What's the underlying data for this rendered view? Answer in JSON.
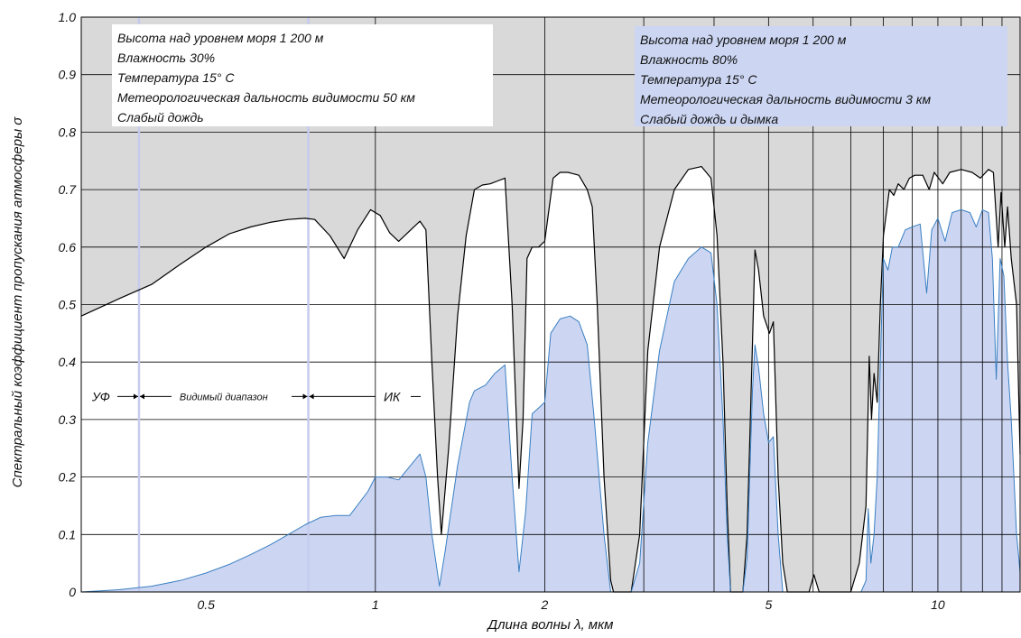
{
  "chart_data": {
    "type": "area",
    "xscale": "log",
    "xlim": [
      0.3,
      14
    ],
    "ylim": [
      0,
      1.0
    ],
    "xlabel": "Длина волны λ, мкм",
    "ylabel": "Спектральный коэффициент пропускания атмосферы σ",
    "grid": true,
    "background_color": "#d9d9d9",
    "y_ticks": [
      {
        "v": 0,
        "label": "0"
      },
      {
        "v": 0.1,
        "label": "0.1"
      },
      {
        "v": 0.2,
        "label": "0.2"
      },
      {
        "v": 0.3,
        "label": "0.3"
      },
      {
        "v": 0.4,
        "label": "0.4"
      },
      {
        "v": 0.5,
        "label": "0.5"
      },
      {
        "v": 0.6,
        "label": "0.6"
      },
      {
        "v": 0.7,
        "label": "0.7"
      },
      {
        "v": 0.8,
        "label": "0.8"
      },
      {
        "v": 0.9,
        "label": "0.9"
      },
      {
        "v": 1.0,
        "label": "1.0"
      }
    ],
    "x_ticks": [
      {
        "v": 0.5,
        "label": "0.5"
      },
      {
        "v": 1,
        "label": "1"
      },
      {
        "v": 2,
        "label": "2"
      },
      {
        "v": 5,
        "label": "5"
      },
      {
        "v": 10,
        "label": "10"
      }
    ],
    "x_gridlines": [
      1,
      2,
      3,
      4,
      5,
      6,
      7,
      8,
      9,
      10,
      11,
      12,
      13
    ],
    "band_lines": [
      0.38,
      0.76
    ],
    "band_labels": {
      "uv": "УФ",
      "visible": "Видимый диапазон",
      "ir": "ИК"
    },
    "series": [
      {
        "name": "clear",
        "color": "#000000",
        "fill": "#ffffff",
        "points": [
          [
            0.3,
            0.48
          ],
          [
            0.35,
            0.51
          ],
          [
            0.4,
            0.535
          ],
          [
            0.45,
            0.57
          ],
          [
            0.5,
            0.6
          ],
          [
            0.55,
            0.623
          ],
          [
            0.6,
            0.635
          ],
          [
            0.65,
            0.643
          ],
          [
            0.7,
            0.648
          ],
          [
            0.75,
            0.65
          ],
          [
            0.78,
            0.648
          ],
          [
            0.83,
            0.62
          ],
          [
            0.88,
            0.58
          ],
          [
            0.93,
            0.63
          ],
          [
            0.98,
            0.665
          ],
          [
            1.02,
            0.655
          ],
          [
            1.06,
            0.625
          ],
          [
            1.1,
            0.61
          ],
          [
            1.2,
            0.645
          ],
          [
            1.23,
            0.63
          ],
          [
            1.26,
            0.4
          ],
          [
            1.29,
            0.2
          ],
          [
            1.31,
            0.1
          ],
          [
            1.35,
            0.25
          ],
          [
            1.4,
            0.48
          ],
          [
            1.45,
            0.62
          ],
          [
            1.5,
            0.7
          ],
          [
            1.55,
            0.708
          ],
          [
            1.6,
            0.71
          ],
          [
            1.65,
            0.715
          ],
          [
            1.7,
            0.72
          ],
          [
            1.75,
            0.5
          ],
          [
            1.8,
            0.18
          ],
          [
            1.83,
            0.3
          ],
          [
            1.86,
            0.58
          ],
          [
            1.9,
            0.6
          ],
          [
            1.95,
            0.6
          ],
          [
            2.0,
            0.61
          ],
          [
            2.07,
            0.72
          ],
          [
            2.13,
            0.73
          ],
          [
            2.2,
            0.73
          ],
          [
            2.3,
            0.725
          ],
          [
            2.38,
            0.7
          ],
          [
            2.43,
            0.67
          ],
          [
            2.48,
            0.5
          ],
          [
            2.55,
            0.2
          ],
          [
            2.62,
            0.02
          ],
          [
            2.65,
            0.0
          ],
          [
            2.85,
            0.0
          ],
          [
            2.95,
            0.1
          ],
          [
            3.05,
            0.42
          ],
          [
            3.2,
            0.6
          ],
          [
            3.4,
            0.7
          ],
          [
            3.6,
            0.735
          ],
          [
            3.8,
            0.74
          ],
          [
            3.95,
            0.72
          ],
          [
            4.05,
            0.62
          ],
          [
            4.15,
            0.4
          ],
          [
            4.22,
            0.15
          ],
          [
            4.28,
            0.0
          ],
          [
            4.5,
            0.0
          ],
          [
            4.58,
            0.1
          ],
          [
            4.68,
            0.43
          ],
          [
            4.73,
            0.595
          ],
          [
            4.8,
            0.56
          ],
          [
            4.9,
            0.48
          ],
          [
            5.02,
            0.45
          ],
          [
            5.1,
            0.47
          ],
          [
            5.2,
            0.2
          ],
          [
            5.3,
            0.05
          ],
          [
            5.4,
            0.0
          ],
          [
            5.9,
            0.0
          ],
          [
            6.02,
            0.03
          ],
          [
            6.15,
            0.0
          ],
          [
            7.0,
            0.0
          ],
          [
            7.25,
            0.05
          ],
          [
            7.45,
            0.15
          ],
          [
            7.55,
            0.41
          ],
          [
            7.62,
            0.3
          ],
          [
            7.7,
            0.38
          ],
          [
            7.8,
            0.33
          ],
          [
            7.9,
            0.5
          ],
          [
            8.0,
            0.62
          ],
          [
            8.2,
            0.7
          ],
          [
            8.35,
            0.69
          ],
          [
            8.5,
            0.71
          ],
          [
            8.7,
            0.7
          ],
          [
            8.9,
            0.72
          ],
          [
            9.1,
            0.725
          ],
          [
            9.4,
            0.725
          ],
          [
            9.65,
            0.7
          ],
          [
            9.85,
            0.73
          ],
          [
            10.2,
            0.71
          ],
          [
            10.5,
            0.73
          ],
          [
            11.0,
            0.735
          ],
          [
            11.5,
            0.73
          ],
          [
            11.9,
            0.72
          ],
          [
            12.3,
            0.735
          ],
          [
            12.55,
            0.73
          ],
          [
            12.8,
            0.6
          ],
          [
            12.95,
            0.695
          ],
          [
            13.15,
            0.6
          ],
          [
            13.3,
            0.67
          ],
          [
            13.5,
            0.58
          ],
          [
            13.8,
            0.5
          ],
          [
            14.0,
            0.24
          ]
        ]
      },
      {
        "name": "haze",
        "color": "#3a7fc2",
        "fill": "#ccd6f2",
        "points": [
          [
            0.3,
            0.0
          ],
          [
            0.35,
            0.004
          ],
          [
            0.4,
            0.01
          ],
          [
            0.45,
            0.02
          ],
          [
            0.5,
            0.033
          ],
          [
            0.55,
            0.048
          ],
          [
            0.6,
            0.065
          ],
          [
            0.65,
            0.082
          ],
          [
            0.7,
            0.1
          ],
          [
            0.75,
            0.117
          ],
          [
            0.8,
            0.13
          ],
          [
            0.85,
            0.133
          ],
          [
            0.9,
            0.133
          ],
          [
            0.97,
            0.175
          ],
          [
            1.0,
            0.2
          ],
          [
            1.05,
            0.2
          ],
          [
            1.1,
            0.195
          ],
          [
            1.2,
            0.24
          ],
          [
            1.23,
            0.2
          ],
          [
            1.26,
            0.1
          ],
          [
            1.3,
            0.01
          ],
          [
            1.33,
            0.07
          ],
          [
            1.4,
            0.22
          ],
          [
            1.47,
            0.33
          ],
          [
            1.5,
            0.35
          ],
          [
            1.57,
            0.36
          ],
          [
            1.63,
            0.38
          ],
          [
            1.7,
            0.395
          ],
          [
            1.75,
            0.2
          ],
          [
            1.8,
            0.035
          ],
          [
            1.85,
            0.14
          ],
          [
            1.9,
            0.31
          ],
          [
            1.95,
            0.32
          ],
          [
            2.0,
            0.33
          ],
          [
            2.05,
            0.45
          ],
          [
            2.13,
            0.475
          ],
          [
            2.22,
            0.48
          ],
          [
            2.3,
            0.47
          ],
          [
            2.38,
            0.43
          ],
          [
            2.45,
            0.3
          ],
          [
            2.55,
            0.1
          ],
          [
            2.62,
            0.0
          ],
          [
            2.85,
            0.0
          ],
          [
            2.95,
            0.05
          ],
          [
            3.05,
            0.26
          ],
          [
            3.2,
            0.42
          ],
          [
            3.4,
            0.54
          ],
          [
            3.6,
            0.58
          ],
          [
            3.8,
            0.6
          ],
          [
            3.95,
            0.59
          ],
          [
            4.05,
            0.5
          ],
          [
            4.15,
            0.3
          ],
          [
            4.22,
            0.1
          ],
          [
            4.28,
            0.0
          ],
          [
            4.5,
            0.0
          ],
          [
            4.58,
            0.06
          ],
          [
            4.68,
            0.35
          ],
          [
            4.73,
            0.43
          ],
          [
            4.8,
            0.39
          ],
          [
            4.9,
            0.31
          ],
          [
            5.0,
            0.26
          ],
          [
            5.1,
            0.27
          ],
          [
            5.2,
            0.1
          ],
          [
            5.3,
            0.0
          ],
          [
            7.0,
            0.0
          ],
          [
            7.3,
            0.0
          ],
          [
            7.45,
            0.02
          ],
          [
            7.52,
            0.145
          ],
          [
            7.6,
            0.05
          ],
          [
            7.7,
            0.1
          ],
          [
            7.8,
            0.2
          ],
          [
            7.9,
            0.4
          ],
          [
            8.0,
            0.58
          ],
          [
            8.15,
            0.56
          ],
          [
            8.3,
            0.6
          ],
          [
            8.5,
            0.6
          ],
          [
            8.75,
            0.63
          ],
          [
            9.0,
            0.635
          ],
          [
            9.3,
            0.64
          ],
          [
            9.55,
            0.52
          ],
          [
            9.75,
            0.63
          ],
          [
            10.0,
            0.65
          ],
          [
            10.3,
            0.61
          ],
          [
            10.6,
            0.66
          ],
          [
            11.0,
            0.665
          ],
          [
            11.4,
            0.66
          ],
          [
            11.7,
            0.635
          ],
          [
            12.0,
            0.665
          ],
          [
            12.3,
            0.66
          ],
          [
            12.5,
            0.58
          ],
          [
            12.7,
            0.37
          ],
          [
            12.9,
            0.58
          ],
          [
            13.1,
            0.55
          ],
          [
            13.3,
            0.4
          ],
          [
            13.5,
            0.3
          ],
          [
            13.8,
            0.1
          ],
          [
            14.0,
            0.035
          ]
        ]
      }
    ],
    "annotations": [
      {
        "name": "clear",
        "lines": [
          "Высота над уровнем моря 1 200 м",
          "Влажность 30%",
          "Температура 15°",
          "Метеорологическая дальность видимости 50 км",
          "Слабый дождь"
        ],
        "temp_unit": "С"
      },
      {
        "name": "haze",
        "lines": [
          "Высота над уровнем моря 1 200 м",
          "Влажность 80%",
          "Температура 15°",
          "Метеорологическая дальность видимости 3 км",
          "Слабый дождь и дымка"
        ],
        "temp_unit": "С"
      }
    ]
  }
}
